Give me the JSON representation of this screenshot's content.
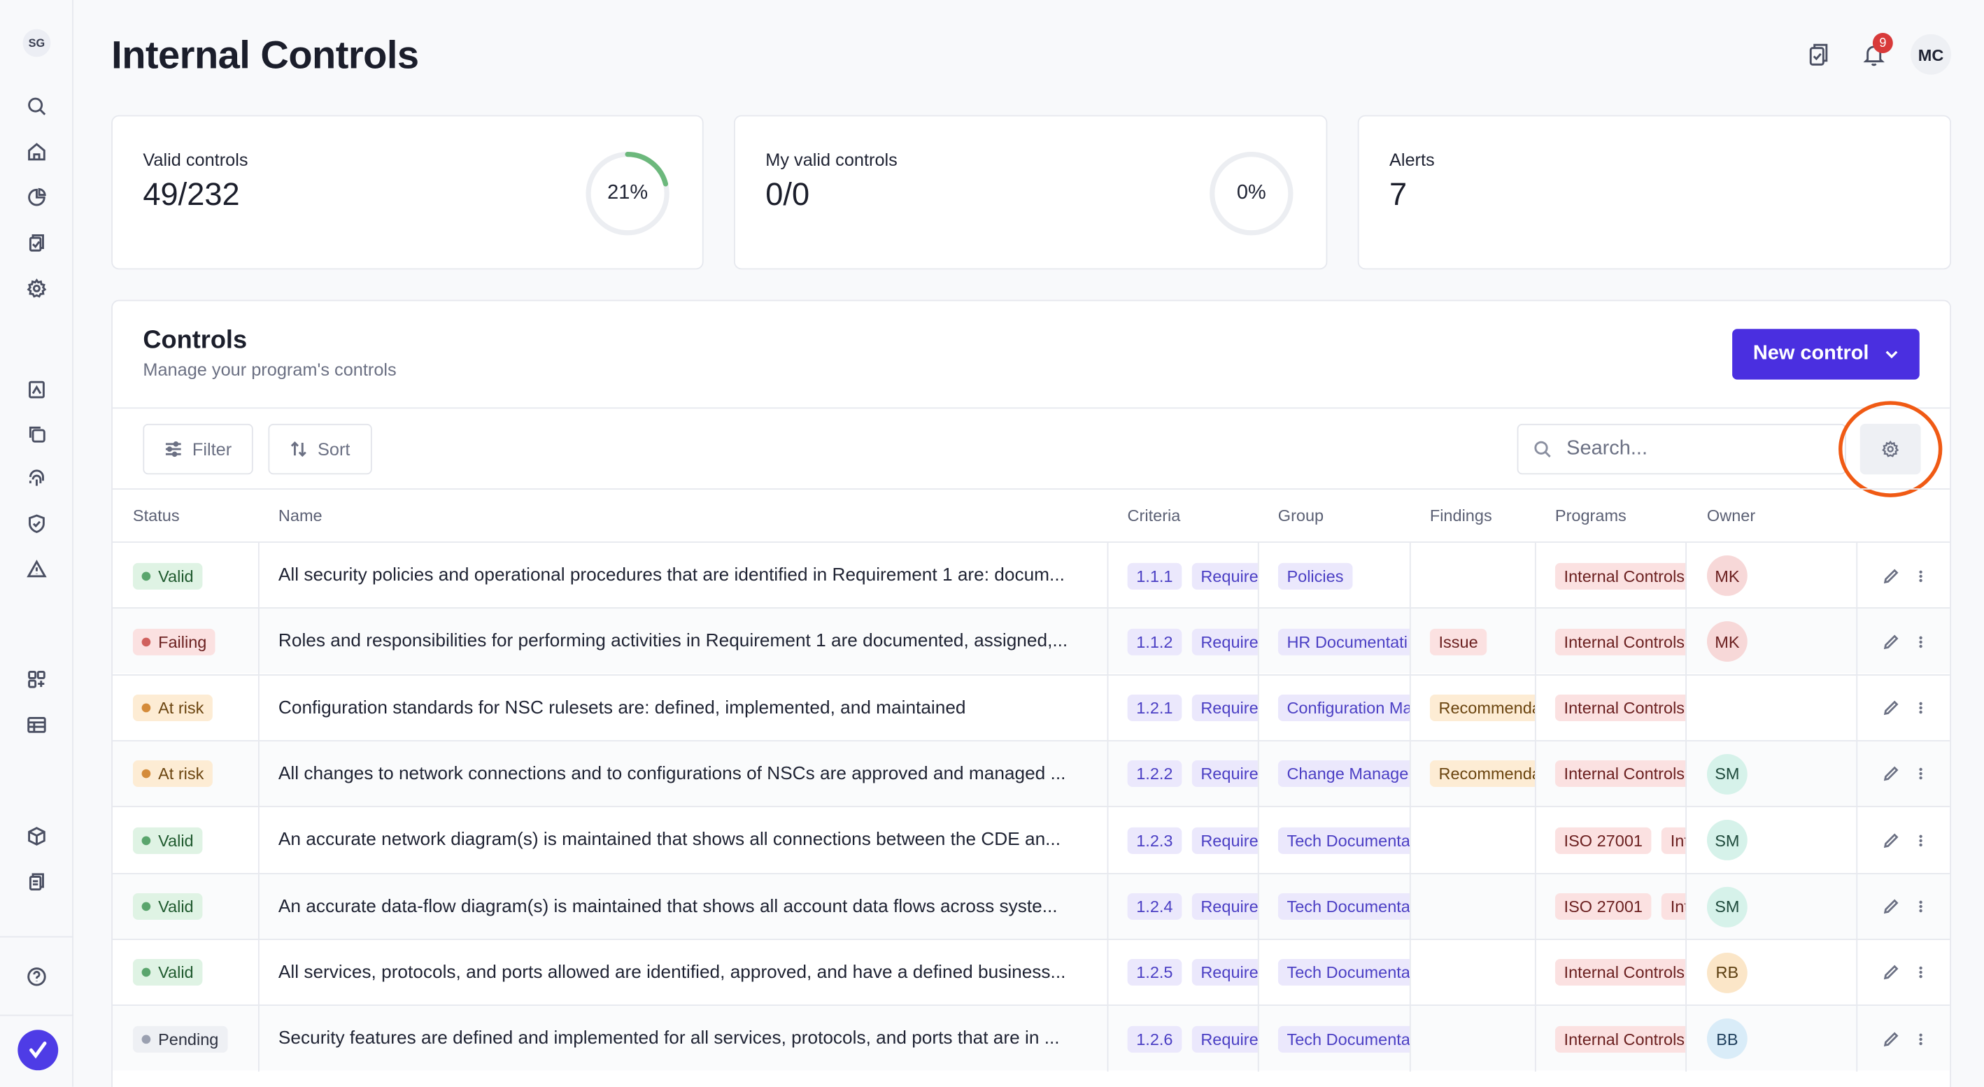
{
  "sidebar": {
    "workspace_initials": "SG",
    "icons": [
      "search-icon",
      "home-icon",
      "pie-chart-icon",
      "clipboard-icon",
      "settings-icon",
      "report-icon",
      "copy-icon",
      "fingerprint-icon",
      "shield-check-icon",
      "warning-icon",
      "apps-icon",
      "table-icon",
      "cube-icon",
      "documents-icon",
      "help-icon"
    ]
  },
  "header": {
    "title": "Internal Controls",
    "notification_count": "9",
    "user_initials": "MC"
  },
  "stats": [
    {
      "label": "Valid controls",
      "value": "49/232",
      "percent_text": "21%",
      "percent": 0.21
    },
    {
      "label": "My valid controls",
      "value": "0/0",
      "percent_text": "0%",
      "percent": 0
    },
    {
      "label": "Alerts",
      "value": "7"
    }
  ],
  "controls": {
    "title": "Controls",
    "subtitle": "Manage your program's controls",
    "new_button": "New control",
    "filter_label": "Filter",
    "sort_label": "Sort",
    "search_placeholder": "Search...",
    "columns": [
      "Status",
      "Name",
      "Criteria",
      "Group",
      "Findings",
      "Programs",
      "Owner"
    ],
    "rows": [
      {
        "status": "Valid",
        "status_class": "valid",
        "name": "All security policies and operational procedures that are identified in Requirement 1 are: docum...",
        "criteria": "1.1.1",
        "criteria_tag": "Requiren",
        "group": "Policies",
        "finding": "",
        "programs": [
          "Internal Controls"
        ],
        "owner": "MK",
        "owner_class": "mk"
      },
      {
        "status": "Failing",
        "status_class": "failing",
        "name": "Roles and responsibilities for performing activities in Requirement 1 are documented, assigned,...",
        "criteria": "1.1.2",
        "criteria_tag": "Requiren",
        "group": "HR Documentati",
        "finding": "Issue",
        "finding_class": "issue",
        "programs": [
          "Internal Controls"
        ],
        "owner": "MK",
        "owner_class": "mk"
      },
      {
        "status": "At risk",
        "status_class": "atrisk",
        "name": "Configuration standards for NSC rulesets are: defined, implemented, and maintained",
        "criteria": "1.2.1",
        "criteria_tag": "Requiren",
        "group": "Configuration Ma",
        "finding": "Recommenda",
        "finding_class": "reco",
        "programs": [
          "Internal Controls"
        ],
        "owner": "",
        "owner_class": ""
      },
      {
        "status": "At risk",
        "status_class": "atrisk",
        "name": "All changes to network connections and to configurations of NSCs are approved and managed ...",
        "criteria": "1.2.2",
        "criteria_tag": "Require",
        "group": "Change Manager",
        "finding": "Recommenda",
        "finding_class": "reco",
        "programs": [
          "Internal Controls"
        ],
        "owner": "SM",
        "owner_class": "sm"
      },
      {
        "status": "Valid",
        "status_class": "valid",
        "name": "An accurate network diagram(s) is maintained that shows all connections between the CDE an...",
        "criteria": "1.2.3",
        "criteria_tag": "Require",
        "group": "Tech Documenta",
        "finding": "",
        "programs": [
          "ISO 27001",
          "Int"
        ],
        "owner": "SM",
        "owner_class": "sm"
      },
      {
        "status": "Valid",
        "status_class": "valid",
        "name": "An accurate data-flow diagram(s) is maintained that shows all account data flows across syste...",
        "criteria": "1.2.4",
        "criteria_tag": "Require",
        "group": "Tech Documenta",
        "finding": "",
        "programs": [
          "ISO 27001",
          "Int"
        ],
        "owner": "SM",
        "owner_class": "sm"
      },
      {
        "status": "Valid",
        "status_class": "valid",
        "name": "All services, protocols, and ports allowed are identified, approved, and have a defined business...",
        "criteria": "1.2.5",
        "criteria_tag": "Require",
        "group": "Tech Documenta",
        "finding": "",
        "programs": [
          "Internal Controls"
        ],
        "owner": "RB",
        "owner_class": "rb"
      },
      {
        "status": "Pending",
        "status_class": "pending",
        "name": "Security features are defined and implemented for all services, protocols, and ports that are in ...",
        "criteria": "1.2.6",
        "criteria_tag": "Require",
        "group": "Tech Documenta",
        "finding": "",
        "programs": [
          "Internal Controls"
        ],
        "owner": "BB",
        "owner_class": "bb"
      }
    ]
  },
  "colors": {
    "accent": "#4a2fe0",
    "ring_progress": "#6cb87c",
    "highlight": "#f05a14"
  }
}
